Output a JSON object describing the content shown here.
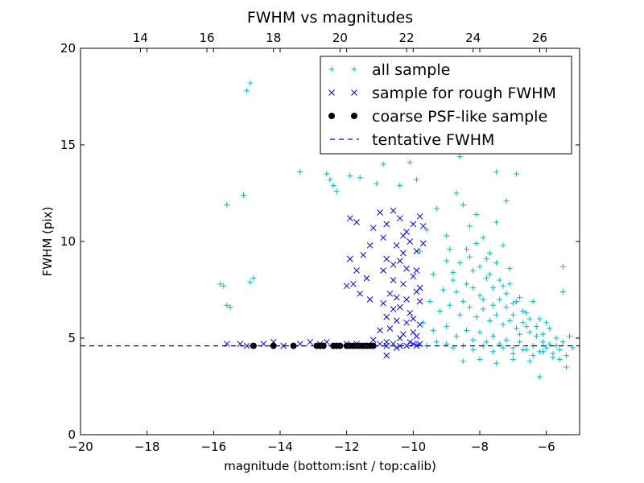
{
  "chart_data": {
    "type": "scatter",
    "title": "FWHM vs magnitudes",
    "xlabel": "magnitude (bottom:isnt / top:calib)",
    "ylabel": "FWHM (pix)",
    "xlim": [
      -20,
      -5
    ],
    "ylim": [
      0,
      20
    ],
    "xticks": [
      -20,
      -18,
      -16,
      -14,
      -12,
      -10,
      -8,
      -6
    ],
    "xtick_labels": [
      "−20",
      "−18",
      "−16",
      "−14",
      "−12",
      "−10",
      "−8",
      "−6"
    ],
    "yticks": [
      0,
      5,
      10,
      15,
      20
    ],
    "ytick_labels": [
      "0",
      "5",
      "10",
      "15",
      "20"
    ],
    "top_axis": {
      "offset": 32.2,
      "ticks": [
        14,
        16,
        18,
        20,
        22,
        24,
        26
      ],
      "tick_labels": [
        "14",
        "16",
        "18",
        "20",
        "22",
        "24",
        "26"
      ]
    },
    "grid": false,
    "legend_position": "top-right",
    "series": [
      {
        "name": "all sample",
        "marker": "plus",
        "color": "#00bfbf",
        "points": [
          [
            -14.9,
            18.2
          ],
          [
            -15.0,
            17.8
          ],
          [
            -15.6,
            11.9
          ],
          [
            -15.1,
            12.4
          ],
          [
            -15.8,
            7.8
          ],
          [
            -15.7,
            7.7
          ],
          [
            -15.6,
            6.7
          ],
          [
            -15.5,
            6.6
          ],
          [
            -14.8,
            8.1
          ],
          [
            -14.9,
            7.9
          ],
          [
            -13.4,
            13.6
          ],
          [
            -12.6,
            13.5
          ],
          [
            -12.5,
            13.2
          ],
          [
            -12.4,
            12.9
          ],
          [
            -12.3,
            12.6
          ],
          [
            -11.9,
            13.4
          ],
          [
            -11.6,
            13.3
          ],
          [
            -11.1,
            13.0
          ],
          [
            -10.9,
            14.0
          ],
          [
            -10.4,
            12.9
          ],
          [
            -10.1,
            14.1
          ],
          [
            -9.9,
            13.2
          ],
          [
            -9.6,
            14.9
          ],
          [
            -8.6,
            14.4
          ],
          [
            -8.3,
            16.8
          ],
          [
            -8.0,
            19.4
          ],
          [
            -7.7,
            16.1
          ],
          [
            -7.3,
            14.9
          ],
          [
            -6.9,
            13.5
          ],
          [
            -7.5,
            13.6
          ],
          [
            -7.2,
            12.1
          ],
          [
            -6.2,
            3.0
          ],
          [
            -5.6,
            3.9
          ],
          [
            -5.4,
            3.5
          ],
          [
            -5.5,
            8.7
          ],
          [
            -5.5,
            7.4
          ],
          [
            -9.8,
            9.5
          ],
          [
            -9.6,
            10.6
          ],
          [
            -9.3,
            11.7
          ],
          [
            -9.0,
            10.3
          ],
          [
            -8.7,
            12.5
          ],
          [
            -8.5,
            11.9
          ],
          [
            -8.9,
            9.6
          ],
          [
            -8.6,
            8.9
          ],
          [
            -8.3,
            10.8
          ],
          [
            -8.1,
            11.4
          ],
          [
            -7.9,
            10.2
          ],
          [
            -7.7,
            9.4
          ],
          [
            -7.5,
            11.0
          ],
          [
            -7.3,
            9.8
          ],
          [
            -7.1,
            8.6
          ],
          [
            -9.4,
            8.3
          ],
          [
            -9.1,
            7.5
          ],
          [
            -8.8,
            8.0
          ],
          [
            -8.4,
            7.8
          ],
          [
            -8.2,
            8.5
          ],
          [
            -8.0,
            7.2
          ],
          [
            -7.8,
            8.1
          ],
          [
            -7.6,
            7.6
          ],
          [
            -7.4,
            7.0
          ],
          [
            -7.2,
            7.3
          ],
          [
            -7.0,
            6.8
          ],
          [
            -6.8,
            7.1
          ],
          [
            -6.6,
            6.3
          ],
          [
            -6.4,
            6.9
          ],
          [
            -6.2,
            6.0
          ],
          [
            -9.5,
            6.9
          ],
          [
            -9.2,
            6.4
          ],
          [
            -8.9,
            6.7
          ],
          [
            -8.6,
            6.2
          ],
          [
            -8.3,
            6.6
          ],
          [
            -8.1,
            6.1
          ],
          [
            -7.9,
            6.5
          ],
          [
            -7.7,
            5.9
          ],
          [
            -7.5,
            6.2
          ],
          [
            -7.3,
            5.7
          ],
          [
            -7.1,
            5.9
          ],
          [
            -6.9,
            5.5
          ],
          [
            -6.7,
            5.8
          ],
          [
            -6.5,
            5.3
          ],
          [
            -6.3,
            5.6
          ],
          [
            -6.1,
            5.2
          ],
          [
            -5.9,
            5.5
          ],
          [
            -5.7,
            5.0
          ],
          [
            -5.3,
            5.1
          ],
          [
            -5.2,
            4.5
          ],
          [
            -9.7,
            5.8
          ],
          [
            -9.4,
            5.4
          ],
          [
            -9.0,
            5.6
          ],
          [
            -8.7,
            5.1
          ],
          [
            -8.4,
            5.4
          ],
          [
            -8.2,
            4.9
          ],
          [
            -8.0,
            5.3
          ],
          [
            -7.8,
            4.8
          ],
          [
            -7.6,
            5.1
          ],
          [
            -7.4,
            4.7
          ],
          [
            -7.2,
            4.9
          ],
          [
            -7.0,
            4.5
          ],
          [
            -6.8,
            4.8
          ],
          [
            -6.6,
            4.4
          ],
          [
            -6.4,
            4.6
          ],
          [
            -6.2,
            4.3
          ],
          [
            -6.0,
            4.5
          ],
          [
            -5.8,
            4.2
          ],
          [
            -5.6,
            4.4
          ],
          [
            -5.4,
            4.1
          ],
          [
            -9.9,
            4.7
          ],
          [
            -9.6,
            4.6
          ],
          [
            -9.3,
            4.8
          ],
          [
            -9.0,
            4.7
          ],
          [
            -8.8,
            4.5
          ],
          [
            -8.5,
            4.6
          ],
          [
            -8.2,
            4.4
          ],
          [
            -7.9,
            4.6
          ],
          [
            -7.6,
            4.3
          ],
          [
            -7.3,
            4.5
          ],
          [
            -7.0,
            4.2
          ],
          [
            -6.7,
            4.4
          ],
          [
            -6.4,
            4.1
          ],
          [
            -6.1,
            4.3
          ],
          [
            -5.8,
            4.0
          ],
          [
            -8.5,
            3.8
          ],
          [
            -8.0,
            3.9
          ],
          [
            -7.5,
            3.7
          ],
          [
            -7.0,
            3.9
          ],
          [
            -6.5,
            3.8
          ],
          [
            -9.0,
            9.0
          ],
          [
            -8.8,
            8.4
          ],
          [
            -8.7,
            7.4
          ],
          [
            -8.5,
            6.9
          ],
          [
            -8.4,
            9.6
          ],
          [
            -8.3,
            9.2
          ],
          [
            -8.2,
            7.6
          ],
          [
            -8.1,
            9.9
          ],
          [
            -8.0,
            8.7
          ],
          [
            -7.9,
            7.0
          ],
          [
            -7.8,
            9.1
          ],
          [
            -7.7,
            8.3
          ],
          [
            -7.6,
            6.7
          ],
          [
            -7.5,
            8.9
          ],
          [
            -7.4,
            8.0
          ],
          [
            -7.3,
            7.7
          ],
          [
            -7.2,
            6.6
          ],
          [
            -7.1,
            7.8
          ],
          [
            -7.0,
            6.2
          ],
          [
            -6.9,
            6.9
          ],
          [
            -6.8,
            5.2
          ],
          [
            -6.7,
            6.4
          ],
          [
            -6.6,
            5.6
          ],
          [
            -6.5,
            6.0
          ],
          [
            -6.3,
            5.1
          ],
          [
            -6.1,
            4.8
          ],
          [
            -6.0,
            5.8
          ],
          [
            -5.9,
            4.7
          ],
          [
            -5.7,
            4.6
          ],
          [
            -5.5,
            4.8
          ]
        ]
      },
      {
        "name": "sample for rough FWHM",
        "marker": "x",
        "color": "#0000ff",
        "points": [
          [
            -15.6,
            4.7
          ],
          [
            -15.2,
            4.7
          ],
          [
            -15.0,
            4.6
          ],
          [
            -14.5,
            4.7
          ],
          [
            -14.2,
            4.8
          ],
          [
            -13.9,
            4.6
          ],
          [
            -13.4,
            4.7
          ],
          [
            -13.1,
            4.8
          ],
          [
            -12.8,
            4.7
          ],
          [
            -12.6,
            4.8
          ],
          [
            -12.3,
            4.6
          ],
          [
            -12.0,
            4.7
          ],
          [
            -11.7,
            4.7
          ],
          [
            -11.3,
            4.6
          ],
          [
            -11.0,
            4.7
          ],
          [
            -10.8,
            4.6
          ],
          [
            -10.6,
            4.7
          ],
          [
            -10.4,
            4.6
          ],
          [
            -10.2,
            4.6
          ],
          [
            -10.0,
            4.7
          ],
          [
            -10.8,
            4.1
          ],
          [
            -10.5,
            4.5
          ],
          [
            -9.9,
            4.6
          ],
          [
            -9.8,
            4.7
          ],
          [
            -11.9,
            9.1
          ],
          [
            -11.7,
            8.5
          ],
          [
            -11.5,
            9.3
          ],
          [
            -11.4,
            8.1
          ],
          [
            -11.8,
            7.8
          ],
          [
            -11.6,
            7.3
          ],
          [
            -11.3,
            9.8
          ],
          [
            -11.9,
            11.2
          ],
          [
            -11.7,
            11.0
          ],
          [
            -11.2,
            10.7
          ],
          [
            -11.0,
            11.5
          ],
          [
            -10.8,
            10.9
          ],
          [
            -10.6,
            11.6
          ],
          [
            -10.4,
            11.2
          ],
          [
            -10.2,
            10.5
          ],
          [
            -10.0,
            10.9
          ],
          [
            -9.8,
            11.3
          ],
          [
            -9.7,
            10.8
          ],
          [
            -10.9,
            10.2
          ],
          [
            -10.5,
            9.8
          ],
          [
            -10.3,
            10.3
          ],
          [
            -10.1,
            10.0
          ],
          [
            -9.9,
            9.5
          ],
          [
            -10.8,
            9.1
          ],
          [
            -10.4,
            9.0
          ],
          [
            -10.2,
            8.6
          ],
          [
            -9.9,
            8.5
          ],
          [
            -10.6,
            8.0
          ],
          [
            -10.3,
            7.8
          ],
          [
            -10.0,
            8.2
          ],
          [
            -9.8,
            7.6
          ],
          [
            -10.7,
            7.3
          ],
          [
            -10.5,
            7.1
          ],
          [
            -10.2,
            7.0
          ],
          [
            -9.9,
            7.4
          ],
          [
            -11.3,
            7.0
          ],
          [
            -10.9,
            6.8
          ],
          [
            -10.6,
            6.5
          ],
          [
            -10.4,
            6.6
          ],
          [
            -10.1,
            6.3
          ],
          [
            -9.8,
            6.9
          ],
          [
            -10.8,
            6.1
          ],
          [
            -10.5,
            5.9
          ],
          [
            -10.2,
            5.8
          ],
          [
            -10.0,
            6.0
          ],
          [
            -11.0,
            5.4
          ],
          [
            -10.7,
            5.5
          ],
          [
            -10.3,
            5.2
          ],
          [
            -10.0,
            5.3
          ],
          [
            -9.8,
            5.7
          ],
          [
            -10.8,
            4.8
          ],
          [
            -10.4,
            5.0
          ],
          [
            -10.1,
            4.8
          ],
          [
            -9.9,
            5.1
          ],
          [
            -11.2,
            4.9
          ],
          [
            -10.9,
            8.5
          ],
          [
            -10.6,
            8.8
          ],
          [
            -10.3,
            9.4
          ],
          [
            -9.7,
            9.9
          ],
          [
            -12.0,
            7.7
          ]
        ]
      },
      {
        "name": "coarse PSF-like sample",
        "marker": "circle",
        "color": "#000000",
        "points": [
          [
            -14.8,
            4.6
          ],
          [
            -14.2,
            4.6
          ],
          [
            -13.6,
            4.6
          ],
          [
            -12.9,
            4.6
          ],
          [
            -12.8,
            4.6
          ],
          [
            -12.7,
            4.6
          ],
          [
            -12.4,
            4.6
          ],
          [
            -12.3,
            4.6
          ],
          [
            -12.2,
            4.6
          ],
          [
            -12.0,
            4.6
          ],
          [
            -11.9,
            4.6
          ],
          [
            -11.8,
            4.6
          ],
          [
            -11.7,
            4.6
          ],
          [
            -11.6,
            4.6
          ],
          [
            -11.5,
            4.6
          ],
          [
            -11.4,
            4.6
          ],
          [
            -11.3,
            4.6
          ],
          [
            -11.2,
            4.6
          ]
        ]
      },
      {
        "name": "tentative FWHM",
        "marker": "dashed-line",
        "color": "#0000ff",
        "y": 4.6
      }
    ]
  }
}
